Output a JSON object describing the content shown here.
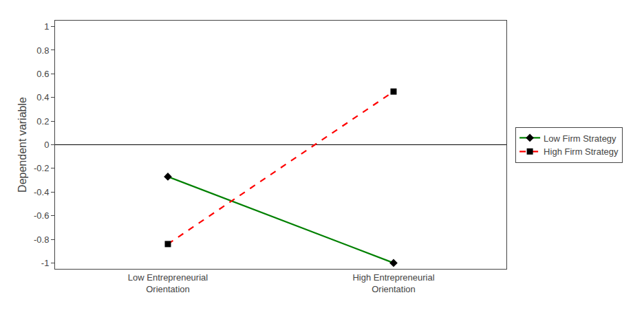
{
  "chart_data": {
    "type": "line",
    "categories": [
      "Low Entrepreneurial\nOrientation",
      "High Entrepreneurial\nOrientation"
    ],
    "series": [
      {
        "name": "Low Firm Strategy",
        "color": "#008000",
        "values": [
          -0.27,
          -1.0
        ],
        "marker": "diamond",
        "line_style": "solid"
      },
      {
        "name": "High Firm Strategy",
        "color": "#ff0000",
        "values": [
          -0.84,
          0.45
        ],
        "marker": "square",
        "line_style": "dashed"
      }
    ],
    "ylabel": "Dependent variable",
    "ylim": [
      -1.05,
      1.05
    ],
    "yticks": [
      -1,
      -0.8,
      -0.6,
      -0.4,
      -0.2,
      0,
      0.2,
      0.4,
      0.6,
      0.8,
      1
    ],
    "grid": false,
    "legend": "right"
  }
}
